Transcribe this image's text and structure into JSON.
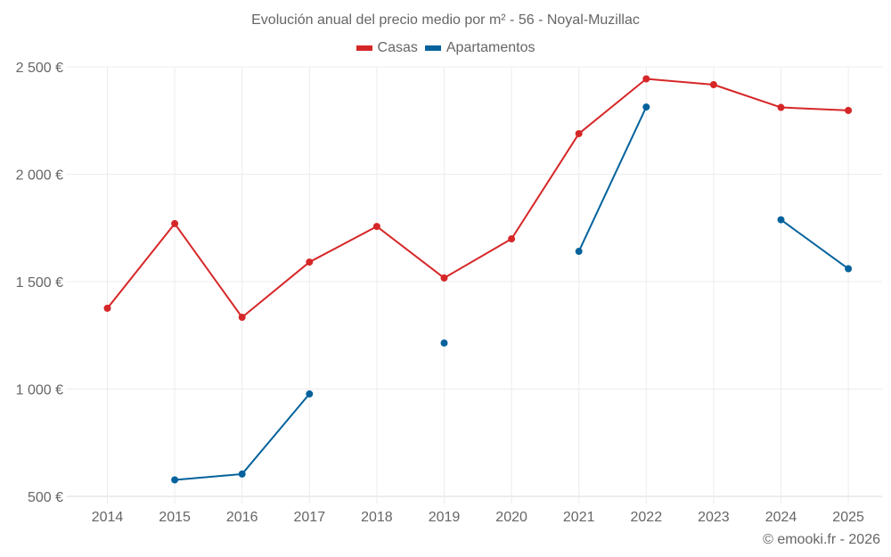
{
  "chart_data": {
    "type": "line",
    "title": "Evolución anual del precio medio por m² - 56 - Noyal-Muzillac",
    "xlabel": "",
    "ylabel": "",
    "x": [
      "2014",
      "2015",
      "2016",
      "2017",
      "2018",
      "2019",
      "2020",
      "2021",
      "2022",
      "2023",
      "2024",
      "2025"
    ],
    "ylim": [
      500,
      2500
    ],
    "yticks": [
      500,
      1000,
      1500,
      2000,
      2500
    ],
    "ytick_labels": [
      "500 €",
      "1 000 €",
      "1 500 €",
      "2 000 €",
      "2 500 €"
    ],
    "grid": true,
    "legend_position": "top-center",
    "series": [
      {
        "name": "Casas",
        "color": "#d62728",
        "values": [
          1376,
          1770,
          1334,
          1591,
          1757,
          1517,
          1699,
          2189,
          2444,
          2417,
          2311,
          2297
        ]
      },
      {
        "name": "Apartamentos",
        "color": "#03629c",
        "values": [
          null,
          577,
          604,
          977,
          null,
          1214,
          null,
          1641,
          2313,
          null,
          1788,
          1560
        ]
      }
    ]
  },
  "footer": {
    "copyright": "© emooki.fr - 2026"
  }
}
